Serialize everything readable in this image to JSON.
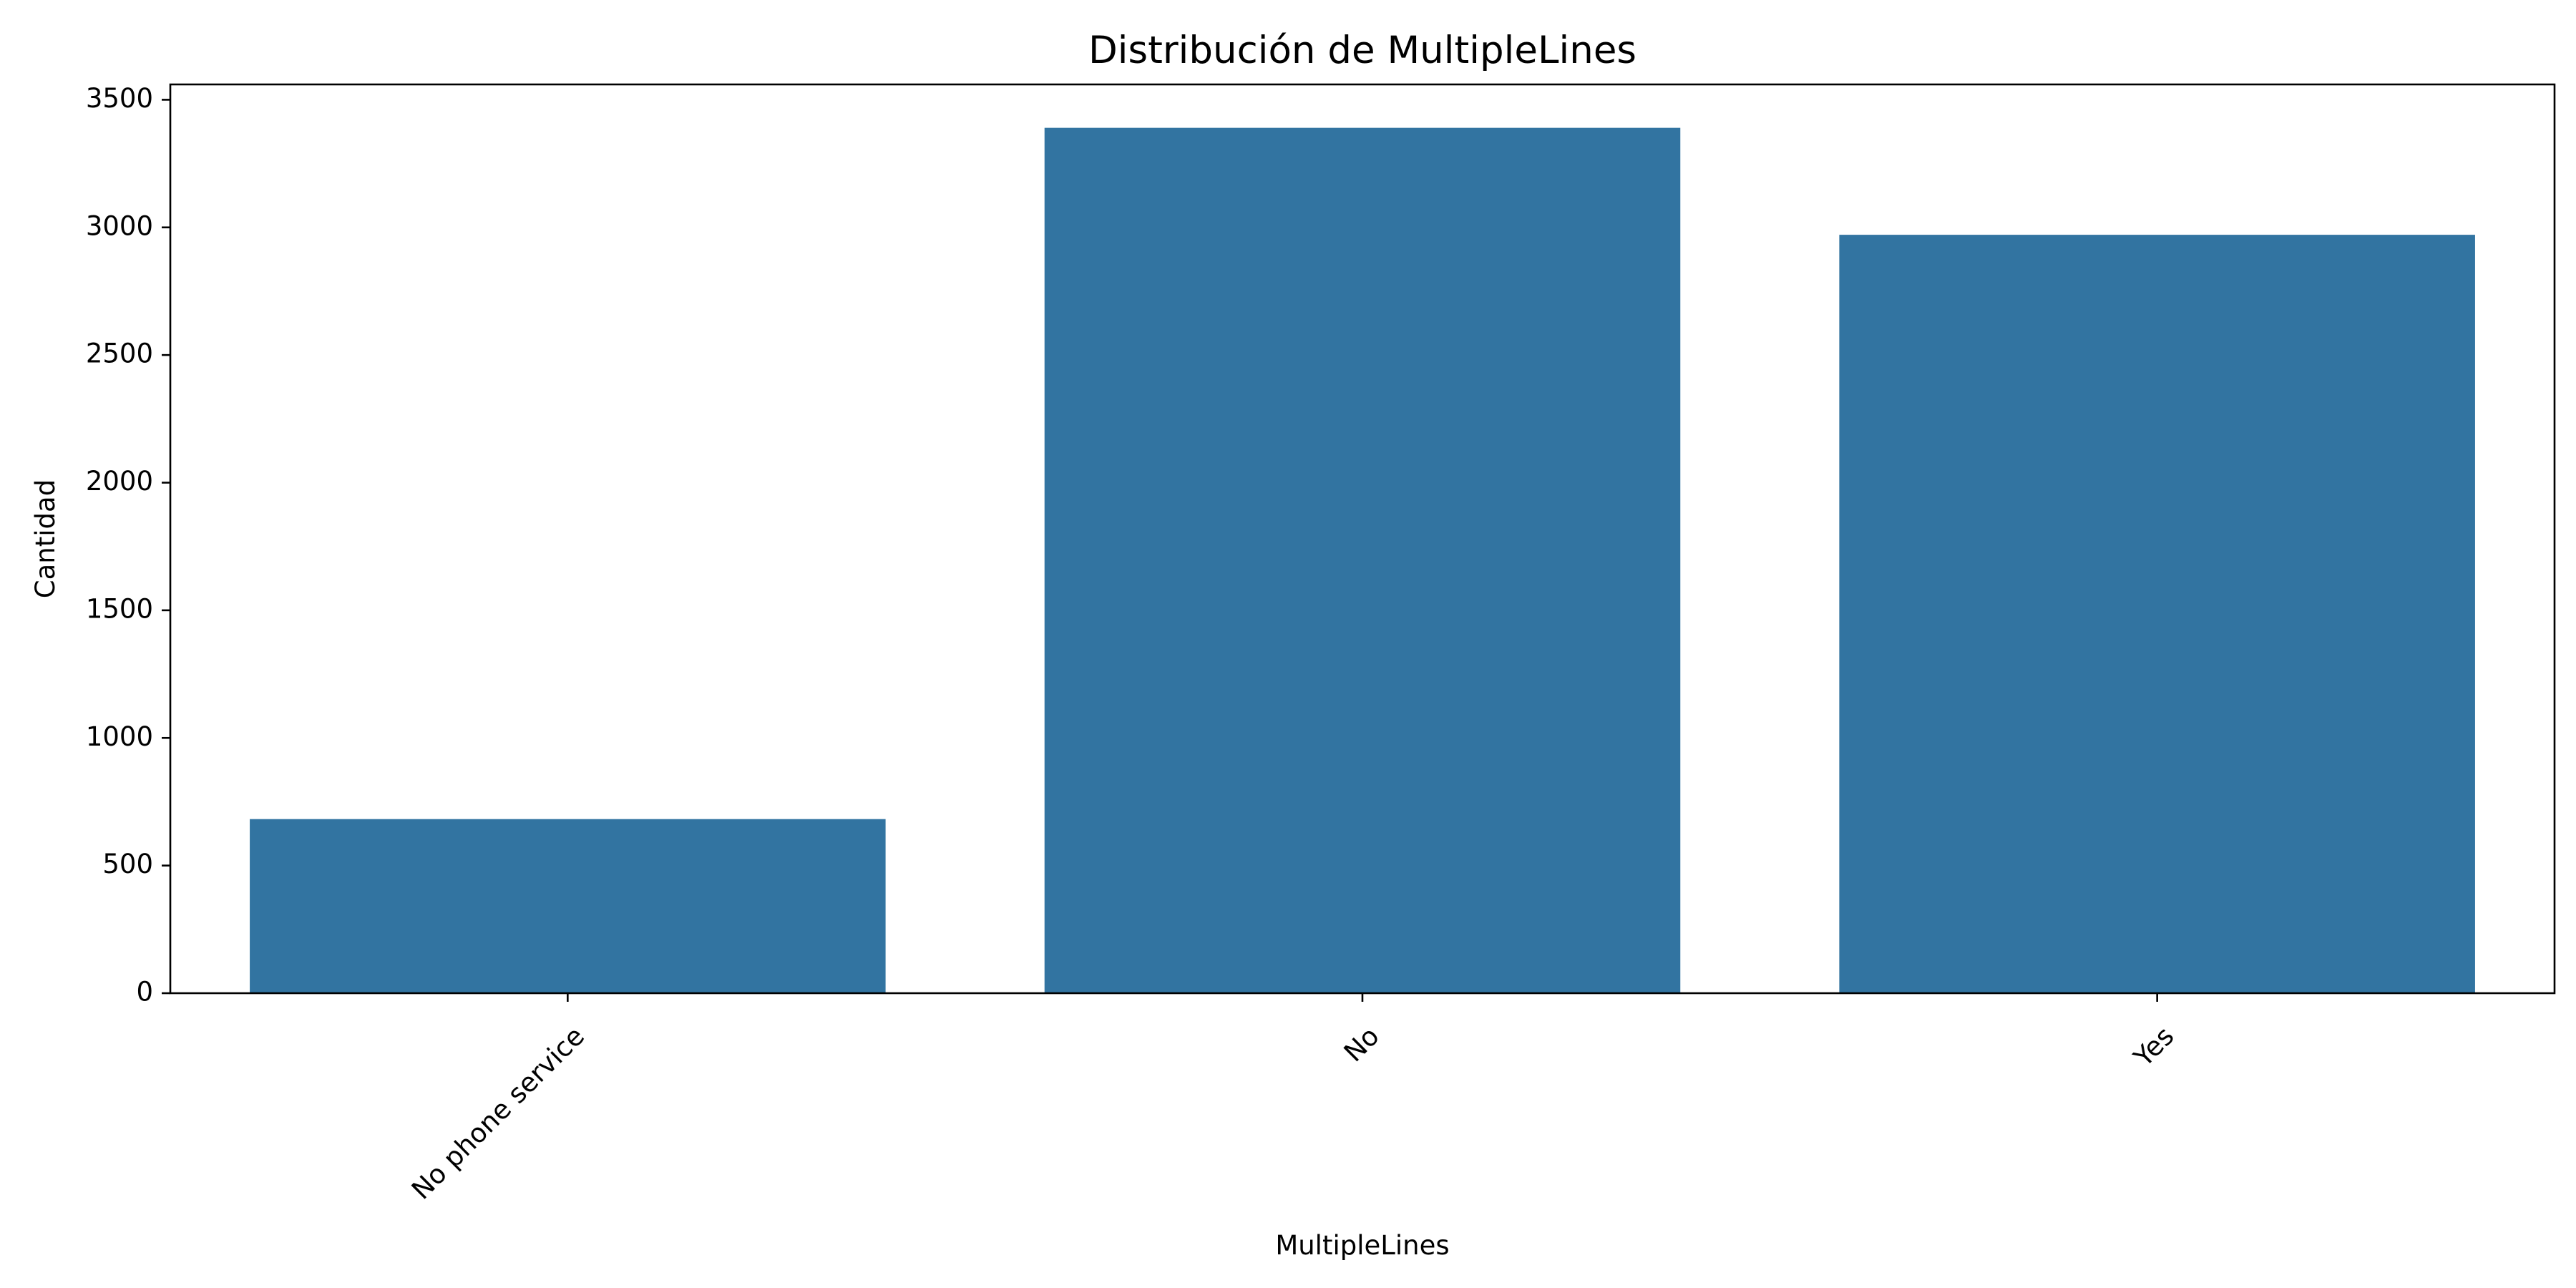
{
  "chart_data": {
    "type": "bar",
    "title": "Distribución de MultipleLines",
    "xlabel": "MultipleLines",
    "ylabel": "Cantidad",
    "categories": [
      "No phone service",
      "No",
      "Yes"
    ],
    "values": [
      682,
      3390,
      2971
    ],
    "ylim": [
      0,
      3560
    ],
    "yticks": [
      0,
      500,
      1000,
      1500,
      2000,
      2500,
      3000,
      3500
    ],
    "bar_color": "#3274a1",
    "grid": false,
    "legend": "none",
    "xtick_rotation": 45
  }
}
